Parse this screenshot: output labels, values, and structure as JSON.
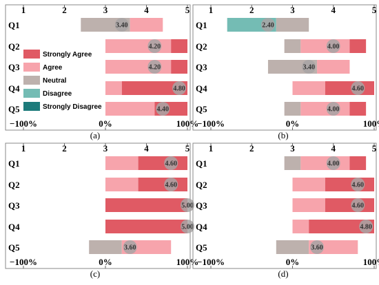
{
  "colors": {
    "strongly_agree": "#e05a64",
    "agree": "#f7a4ac",
    "neutral": "#bdb1ad",
    "disagree": "#74bcb4",
    "strongly_disagree": "#1d7b7b",
    "mean_marker": "#a8a4a4"
  },
  "legend": {
    "placement": "panel-a-left",
    "entries": [
      "Strongly Agree",
      "Agree",
      "Neutral",
      "Disagree",
      "Strongly Disagree"
    ]
  },
  "chart_data": [
    {
      "type": "bar",
      "subtype": "diverging-stacked-bar",
      "caption": "(a)",
      "top_axis_ticks": [
        "1",
        "2",
        "3",
        "4",
        "5"
      ],
      "top_axis_range": [
        1,
        5
      ],
      "bottom_axis_ticks": [
        "−100%",
        "0%",
        "100%"
      ],
      "bottom_axis_range": [
        -100,
        100
      ],
      "categories": [
        "Q1",
        "Q2",
        "Q3",
        "Q4",
        "Q5"
      ],
      "means": [
        "3.40",
        "4.20",
        "4.20",
        "4.80",
        "4.40"
      ],
      "series": [
        {
          "name": "Strongly Disagree",
          "values": [
            0,
            0,
            0,
            0,
            0
          ]
        },
        {
          "name": "Disagree",
          "values": [
            0,
            0,
            0,
            0,
            0
          ]
        },
        {
          "name": "Neutral",
          "values": [
            60,
            0,
            0,
            0,
            0
          ]
        },
        {
          "name": "Agree",
          "values": [
            40,
            80,
            80,
            20,
            60
          ]
        },
        {
          "name": "Strongly Agree",
          "values": [
            0,
            20,
            20,
            80,
            40
          ]
        }
      ]
    },
    {
      "type": "bar",
      "subtype": "diverging-stacked-bar",
      "caption": "(b)",
      "top_axis_ticks": [
        "1",
        "2",
        "3",
        "4",
        "5"
      ],
      "top_axis_range": [
        1,
        5
      ],
      "bottom_axis_ticks": [
        "−100%",
        "0%",
        "100%"
      ],
      "bottom_axis_range": [
        -100,
        100
      ],
      "categories": [
        "Q1",
        "Q2",
        "Q3",
        "Q4",
        "Q5"
      ],
      "means": [
        "2.40",
        "4.00",
        "3.40",
        "4.60",
        "4.00"
      ],
      "series": [
        {
          "name": "Strongly Disagree",
          "values": [
            0,
            0,
            0,
            0,
            0
          ]
        },
        {
          "name": "Disagree",
          "values": [
            60,
            0,
            0,
            0,
            0
          ]
        },
        {
          "name": "Neutral",
          "values": [
            40,
            20,
            60,
            0,
            20
          ]
        },
        {
          "name": "Agree",
          "values": [
            0,
            60,
            40,
            40,
            60
          ]
        },
        {
          "name": "Strongly Agree",
          "values": [
            0,
            20,
            0,
            60,
            20
          ]
        }
      ]
    },
    {
      "type": "bar",
      "subtype": "diverging-stacked-bar",
      "caption": "(c)",
      "top_axis_ticks": [
        "1",
        "2",
        "3",
        "4",
        "5"
      ],
      "top_axis_range": [
        1,
        5
      ],
      "bottom_axis_ticks": [
        "−100%",
        "0%",
        "100%"
      ],
      "bottom_axis_range": [
        -100,
        100
      ],
      "categories": [
        "Q1",
        "Q2",
        "Q3",
        "Q4",
        "Q5"
      ],
      "means": [
        "4.60",
        "4.60",
        "5.00",
        "5.00",
        "3.60"
      ],
      "series": [
        {
          "name": "Strongly Disagree",
          "values": [
            0,
            0,
            0,
            0,
            0
          ]
        },
        {
          "name": "Disagree",
          "values": [
            0,
            0,
            0,
            0,
            0
          ]
        },
        {
          "name": "Neutral",
          "values": [
            0,
            0,
            0,
            0,
            40
          ]
        },
        {
          "name": "Agree",
          "values": [
            40,
            40,
            0,
            0,
            60
          ]
        },
        {
          "name": "Strongly Agree",
          "values": [
            60,
            60,
            100,
            100,
            0
          ]
        }
      ]
    },
    {
      "type": "bar",
      "subtype": "diverging-stacked-bar",
      "caption": "(d)",
      "top_axis_ticks": [
        "1",
        "2",
        "3",
        "4",
        "5"
      ],
      "top_axis_range": [
        1,
        5
      ],
      "bottom_axis_ticks": [
        "−100%",
        "0%",
        "100%"
      ],
      "bottom_axis_range": [
        -100,
        100
      ],
      "categories": [
        "Q1",
        "Q2",
        "Q3",
        "Q4",
        "Q5"
      ],
      "means": [
        "4.00",
        "4.60",
        "4.60",
        "4.80",
        "3.60"
      ],
      "series": [
        {
          "name": "Strongly Disagree",
          "values": [
            0,
            0,
            0,
            0,
            0
          ]
        },
        {
          "name": "Disagree",
          "values": [
            0,
            0,
            0,
            0,
            0
          ]
        },
        {
          "name": "Neutral",
          "values": [
            20,
            0,
            0,
            0,
            40
          ]
        },
        {
          "name": "Agree",
          "values": [
            60,
            40,
            40,
            20,
            60
          ]
        },
        {
          "name": "Strongly Agree",
          "values": [
            20,
            60,
            60,
            80,
            0
          ]
        }
      ]
    }
  ]
}
